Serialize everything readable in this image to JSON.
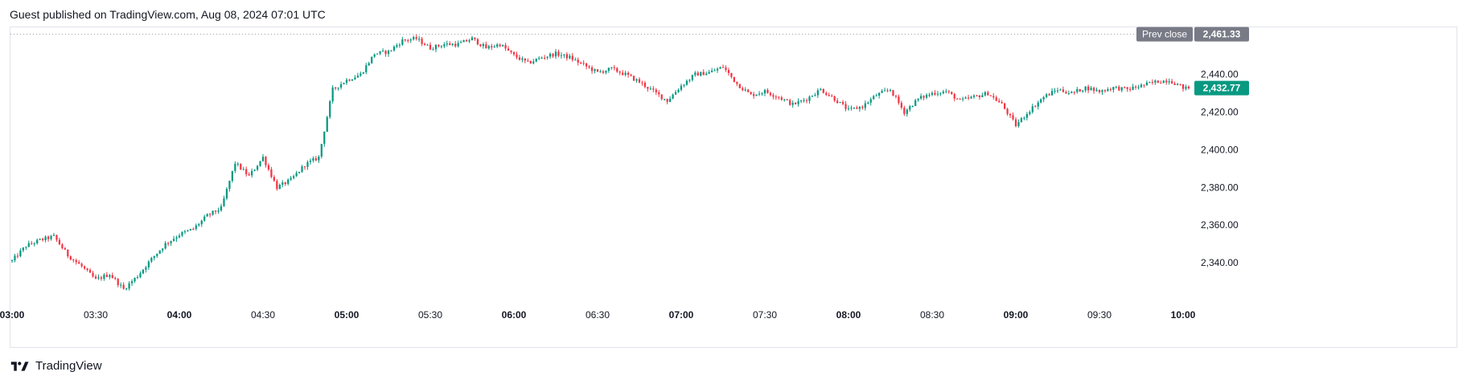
{
  "header": {
    "published_text": "Guest published on TradingView.com, Aug 08, 2024 07:01 UTC"
  },
  "footer": {
    "brand": "TradingView",
    "logo_icon": "tradingview-logo-icon"
  },
  "colors": {
    "up": "#089981",
    "down": "#f23645",
    "prev_close_bg": "#787b86",
    "last_price_bg": "#089981",
    "grid_text": "#131722",
    "frame": "#e0e3eb"
  },
  "chart_data": {
    "type": "candlestick",
    "title": "",
    "xlabel": "",
    "ylabel": "",
    "ylim": [
      2320,
      2465
    ],
    "y_ticks": [
      "2,440.00",
      "2,420.00",
      "2,400.00",
      "2,380.00",
      "2,360.00",
      "2,340.00"
    ],
    "y_tick_values": [
      2440,
      2420,
      2400,
      2380,
      2360,
      2340
    ],
    "x_ticks": [
      {
        "label": "03:00",
        "bold": true
      },
      {
        "label": "03:30",
        "bold": false
      },
      {
        "label": "04:00",
        "bold": true
      },
      {
        "label": "04:30",
        "bold": false
      },
      {
        "label": "05:00",
        "bold": true
      },
      {
        "label": "05:30",
        "bold": false
      },
      {
        "label": "06:00",
        "bold": true
      },
      {
        "label": "06:30",
        "bold": false
      },
      {
        "label": "07:00",
        "bold": true
      },
      {
        "label": "07:30",
        "bold": false
      },
      {
        "label": "08:00",
        "bold": true
      },
      {
        "label": "08:30",
        "bold": false
      },
      {
        "label": "09:00",
        "bold": true
      },
      {
        "label": "09:30",
        "bold": false
      },
      {
        "label": "10:00",
        "bold": true
      }
    ],
    "prev_close": {
      "label": "Prev close",
      "value": 2461.33,
      "value_text": "2,461.33"
    },
    "last_price": {
      "value": 2432.77,
      "value_text": "2,432.77"
    },
    "price_path": [
      [
        "03:00",
        2341
      ],
      [
        "03:05",
        2349
      ],
      [
        "03:10",
        2352
      ],
      [
        "03:15",
        2354
      ],
      [
        "03:20",
        2344
      ],
      [
        "03:25",
        2338
      ],
      [
        "03:30",
        2331
      ],
      [
        "03:35",
        2334
      ],
      [
        "03:40",
        2326
      ],
      [
        "03:45",
        2333
      ],
      [
        "03:50",
        2342
      ],
      [
        "03:55",
        2350
      ],
      [
        "04:00",
        2355
      ],
      [
        "04:05",
        2358
      ],
      [
        "04:10",
        2365
      ],
      [
        "04:15",
        2369
      ],
      [
        "04:20",
        2393
      ],
      [
        "04:25",
        2386
      ],
      [
        "04:30",
        2396
      ],
      [
        "04:35",
        2380
      ],
      [
        "04:40",
        2384
      ],
      [
        "04:45",
        2392
      ],
      [
        "04:50",
        2396
      ],
      [
        "04:55",
        2432
      ],
      [
        "05:00",
        2437
      ],
      [
        "05:05",
        2440
      ],
      [
        "05:10",
        2451
      ],
      [
        "05:15",
        2452
      ],
      [
        "05:20",
        2458
      ],
      [
        "05:25",
        2459
      ],
      [
        "05:30",
        2454
      ],
      [
        "05:35",
        2456
      ],
      [
        "05:40",
        2456
      ],
      [
        "05:45",
        2459
      ],
      [
        "05:50",
        2454
      ],
      [
        "05:55",
        2456
      ],
      [
        "06:00",
        2450
      ],
      [
        "06:05",
        2446
      ],
      [
        "06:10",
        2449
      ],
      [
        "06:15",
        2451
      ],
      [
        "06:20",
        2449
      ],
      [
        "06:25",
        2445
      ],
      [
        "06:30",
        2441
      ],
      [
        "06:35",
        2443
      ],
      [
        "06:40",
        2440
      ],
      [
        "06:45",
        2436
      ],
      [
        "06:50",
        2431
      ],
      [
        "06:55",
        2426
      ],
      [
        "07:00",
        2434
      ],
      [
        "07:05",
        2440
      ],
      [
        "07:10",
        2441
      ],
      [
        "07:15",
        2444
      ],
      [
        "07:20",
        2435
      ],
      [
        "07:25",
        2429
      ],
      [
        "07:30",
        2431
      ],
      [
        "07:35",
        2428
      ],
      [
        "07:40",
        2424
      ],
      [
        "07:45",
        2427
      ],
      [
        "07:50",
        2432
      ],
      [
        "07:55",
        2427
      ],
      [
        "08:00",
        2421
      ],
      [
        "08:05",
        2423
      ],
      [
        "08:10",
        2429
      ],
      [
        "08:15",
        2432
      ],
      [
        "08:20",
        2420
      ],
      [
        "08:25",
        2427
      ],
      [
        "08:30",
        2430
      ],
      [
        "08:35",
        2431
      ],
      [
        "08:40",
        2426
      ],
      [
        "08:45",
        2428
      ],
      [
        "08:50",
        2430
      ],
      [
        "08:55",
        2424
      ],
      [
        "09:00",
        2413
      ],
      [
        "09:05",
        2421
      ],
      [
        "09:10",
        2428
      ],
      [
        "09:15",
        2432
      ],
      [
        "09:20",
        2430
      ],
      [
        "09:25",
        2433
      ],
      [
        "09:30",
        2431
      ],
      [
        "09:35",
        2433
      ],
      [
        "09:40",
        2432
      ],
      [
        "09:45",
        2434
      ],
      [
        "09:50",
        2436
      ],
      [
        "09:55",
        2437
      ],
      [
        "10:00",
        2433
      ]
    ]
  }
}
